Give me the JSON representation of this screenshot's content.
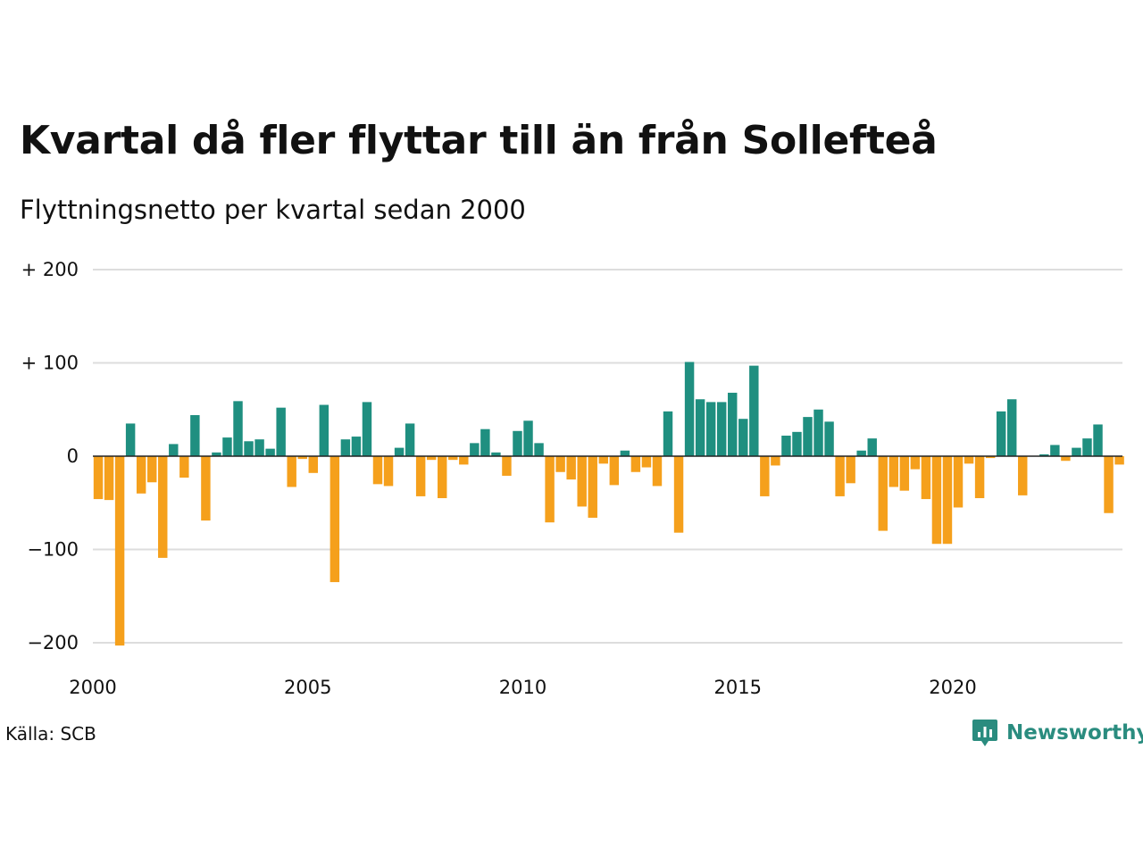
{
  "header": {
    "title": "Kvartal då fler flyttar till än från Sollefteå",
    "subtitle": "Flyttningsnetto per kvartal sedan 2000"
  },
  "footer": {
    "source": "Källa: SCB",
    "brand": "Newsworthy",
    "brand_icon": "chart-bubble-icon"
  },
  "colors": {
    "positive": "#1f8f80",
    "negative": "#f5a01c",
    "grid": "#dddddd",
    "zero_line": "#222222",
    "brand": "#2a8c7f"
  },
  "chart_data": {
    "type": "bar",
    "title": "Kvartal då fler flyttar till än från Sollefteå",
    "subtitle": "Flyttningsnetto per kvartal sedan 2000",
    "xlabel": "",
    "ylabel": "",
    "x_start": 2000,
    "periods_per_year": 4,
    "ylim": [
      -210,
      200
    ],
    "yticks": [
      {
        "value": 200,
        "label": "+ 200"
      },
      {
        "value": 100,
        "label": "+ 100"
      },
      {
        "value": 0,
        "label": "0"
      },
      {
        "value": -100,
        "label": "−100"
      },
      {
        "value": -200,
        "label": "−200"
      }
    ],
    "xticks": [
      {
        "value": 2000,
        "label": "2000"
      },
      {
        "value": 2005,
        "label": "2005"
      },
      {
        "value": 2010,
        "label": "2010"
      },
      {
        "value": 2015,
        "label": "2015"
      },
      {
        "value": 2020,
        "label": "2020"
      }
    ],
    "grid": true,
    "legend": "none",
    "values": [
      -46,
      -47,
      -203,
      35,
      -40,
      -28,
      -109,
      13,
      -23,
      44,
      -69,
      4,
      20,
      59,
      16,
      18,
      8,
      52,
      -33,
      -3,
      -18,
      55,
      -135,
      18,
      21,
      58,
      -30,
      -32,
      9,
      35,
      -43,
      -4,
      -45,
      -4,
      -9,
      14,
      29,
      4,
      -21,
      27,
      38,
      14,
      -71,
      -17,
      -25,
      -54,
      -66,
      -8,
      -31,
      6,
      -17,
      -12,
      -32,
      48,
      -82,
      101,
      61,
      58,
      58,
      68,
      40,
      97,
      -43,
      -10,
      22,
      26,
      42,
      50,
      37,
      -43,
      -29,
      6,
      19,
      -80,
      -33,
      -37,
      -14,
      -46,
      -94,
      -94,
      -55,
      -8,
      -45,
      -2,
      48,
      61,
      -42,
      0,
      2,
      12,
      -5,
      9,
      19,
      34,
      -61,
      -9
    ]
  }
}
